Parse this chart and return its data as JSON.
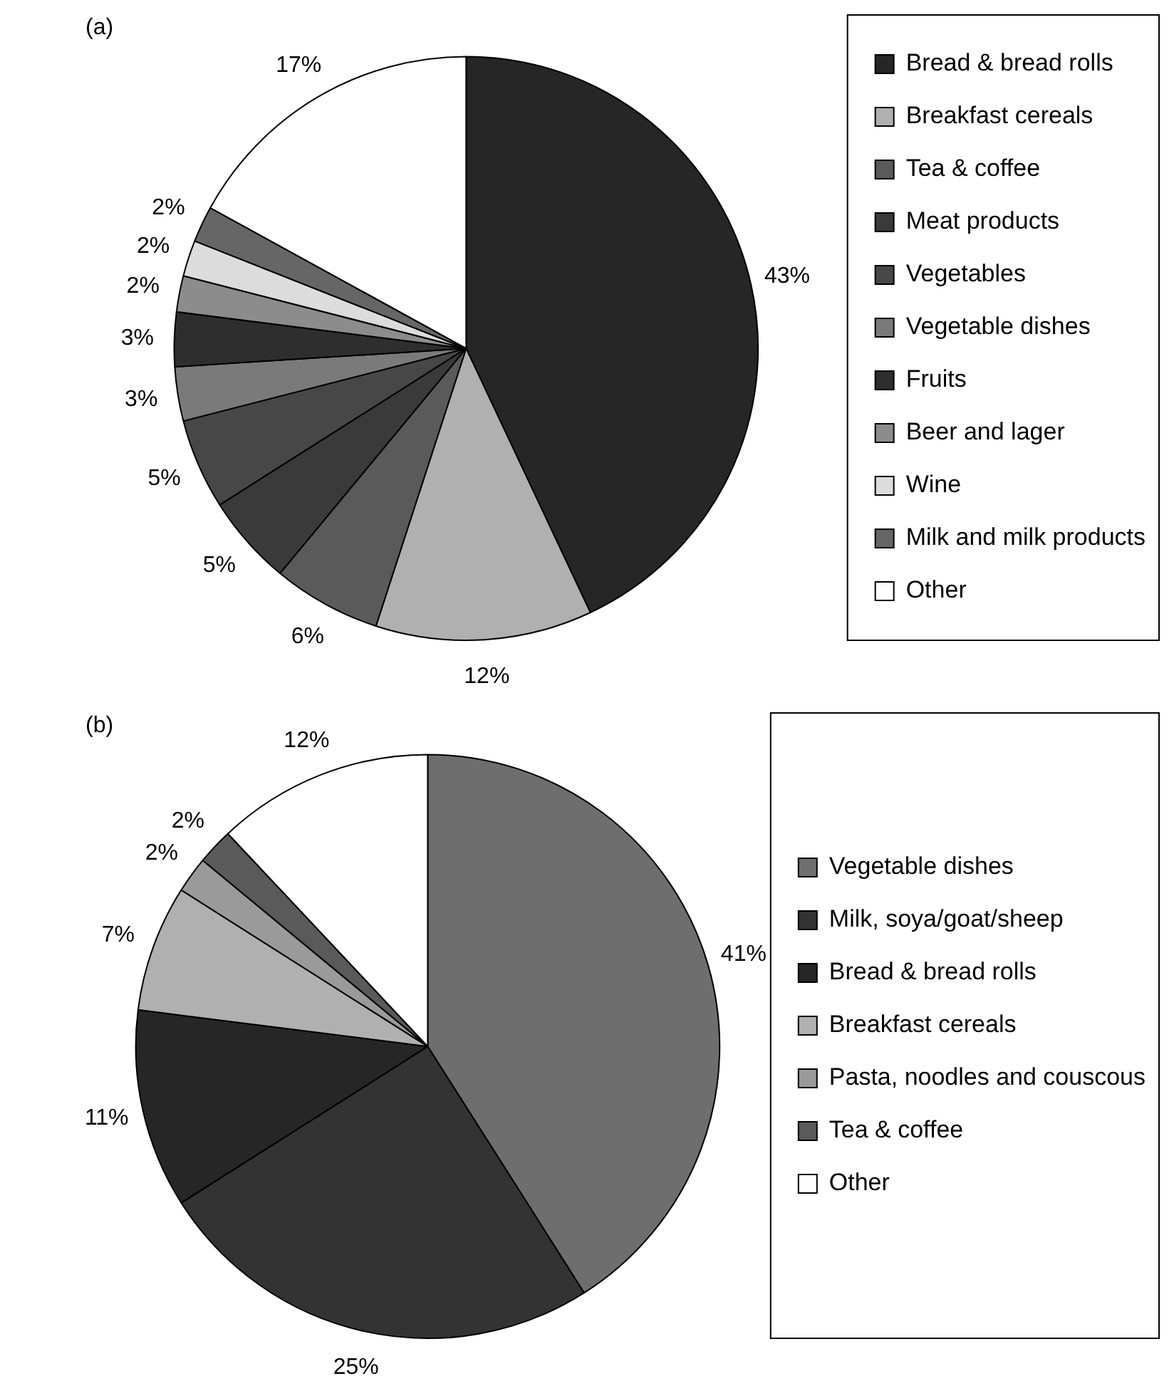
{
  "chart_data": [
    {
      "type": "pie",
      "title": "(a)",
      "legend": "right",
      "categories": [
        "Bread & bread rolls",
        "Breakfast cereals",
        "Tea & coffee",
        "Meat products",
        "Vegetables",
        "Vegetable dishes",
        "Fruits",
        "Beer and lager",
        "Wine",
        "Milk and milk products",
        "Other"
      ],
      "values": [
        43,
        12,
        6,
        5,
        5,
        3,
        3,
        2,
        2,
        2,
        17
      ],
      "value_labels": [
        "43%",
        "12%",
        "6%",
        "5%",
        "5%",
        "3%",
        "3%",
        "2%",
        "2%",
        "2%",
        "17%"
      ],
      "colors": [
        "#262626",
        "#b0b0b0",
        "#5a5a5a",
        "#3a3a3a",
        "#474747",
        "#7a7a7a",
        "#2e2e2e",
        "#8c8c8c",
        "#dcdcdc",
        "#666666",
        "#ffffff"
      ]
    },
    {
      "type": "pie",
      "title": "(b)",
      "legend": "right",
      "categories": [
        "Vegetable dishes",
        "Milk, soya/goat/sheep",
        "Bread & bread rolls",
        "Breakfast cereals",
        "Pasta, noodles and couscous",
        "Tea & coffee",
        "Other"
      ],
      "values": [
        41,
        25,
        11,
        7,
        2,
        2,
        12
      ],
      "value_labels": [
        "41%",
        "25%",
        "11%",
        "7%",
        "2%",
        "2%",
        "12%"
      ],
      "colors": [
        "#6e6e6e",
        "#333333",
        "#262626",
        "#b0b0b0",
        "#9a9a9a",
        "#5a5a5a",
        "#ffffff"
      ]
    }
  ]
}
